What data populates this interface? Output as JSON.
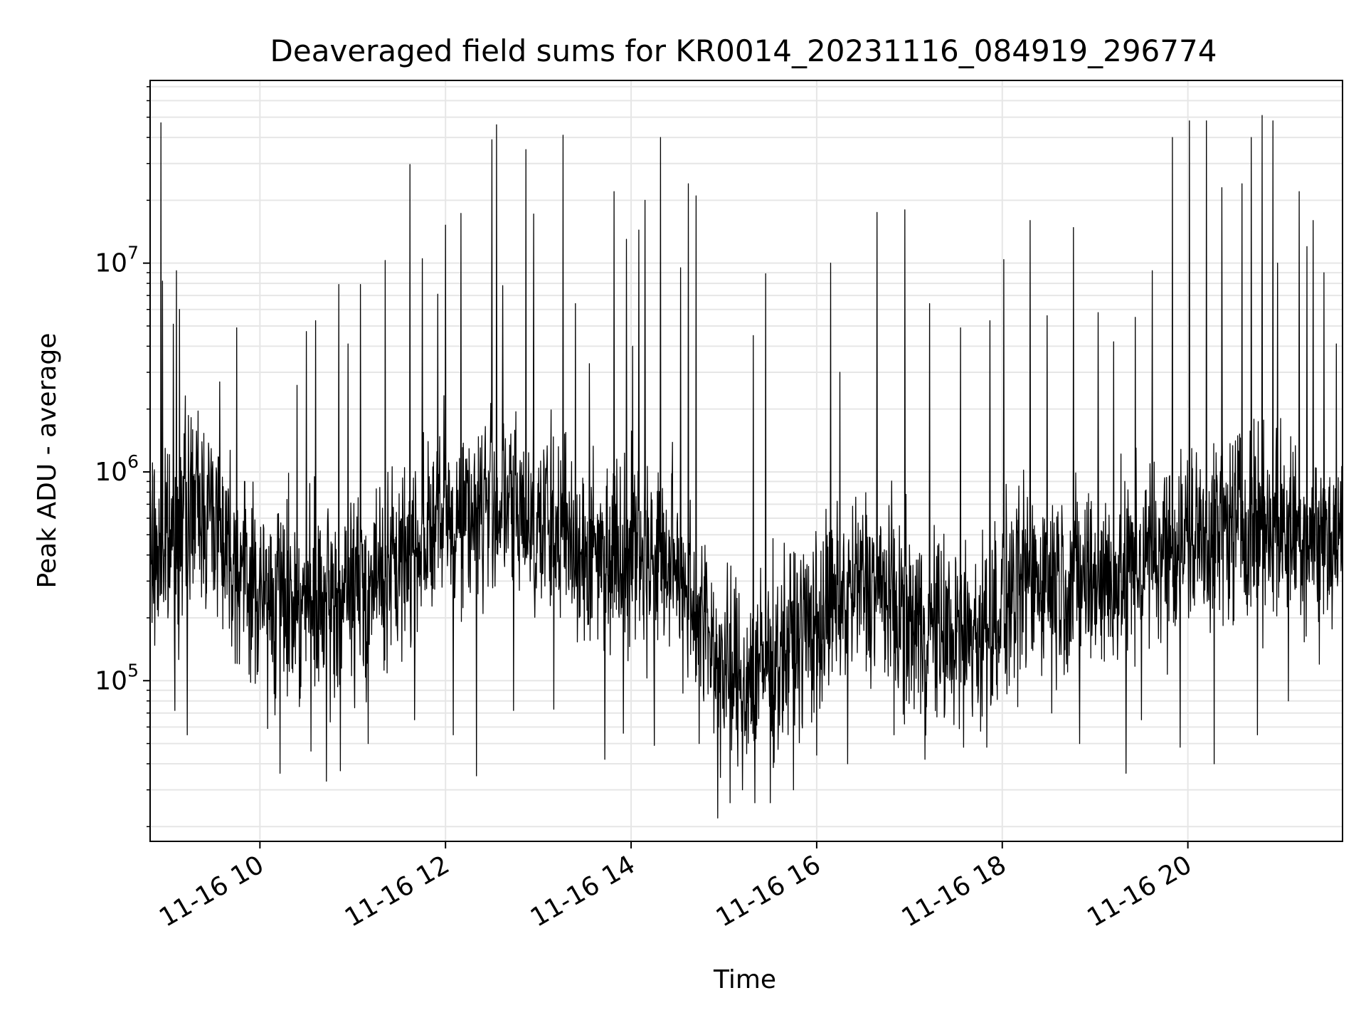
{
  "chart_data": {
    "type": "line",
    "title": "Deaveraged field sums for KR0014_20231116_084919_296774",
    "xlabel": "Time",
    "ylabel": "Peak ADU - average",
    "x_start": "2023-11-16 08:49",
    "x_end": "2023-11-16 21:40",
    "xlim": [
      "2023-11-16 08:49",
      "2023-11-16 21:40"
    ],
    "ylim": [
      17000,
      75000000
    ],
    "yscale": "log",
    "grid": true,
    "x_ticks": [
      {
        "value": "2023-11-16 10:00",
        "label": "11-16 10"
      },
      {
        "value": "2023-11-16 12:00",
        "label": "11-16 12"
      },
      {
        "value": "2023-11-16 14:00",
        "label": "11-16 14"
      },
      {
        "value": "2023-11-16 16:00",
        "label": "11-16 16"
      },
      {
        "value": "2023-11-16 18:00",
        "label": "11-16 18"
      },
      {
        "value": "2023-11-16 20:00",
        "label": "11-16 20"
      }
    ],
    "y_ticks": [
      {
        "value": 100000,
        "base": "10",
        "exp": "5"
      },
      {
        "value": 1000000,
        "base": "10",
        "exp": "6"
      },
      {
        "value": 10000000,
        "base": "10",
        "exp": "7"
      }
    ],
    "series": [
      {
        "color": "#000000",
        "baseline": [
          [
            "08:49",
            400000
          ],
          [
            "09:00",
            420000
          ],
          [
            "09:15",
            700000
          ],
          [
            "09:30",
            650000
          ],
          [
            "09:45",
            380000
          ],
          [
            "10:00",
            250000
          ],
          [
            "10:15",
            260000
          ],
          [
            "10:30",
            230000
          ],
          [
            "10:45",
            220000
          ],
          [
            "11:00",
            270000
          ],
          [
            "11:15",
            300000
          ],
          [
            "11:30",
            350000
          ],
          [
            "11:45",
            520000
          ],
          [
            "12:00",
            580000
          ],
          [
            "12:15",
            650000
          ],
          [
            "12:30",
            720000
          ],
          [
            "12:45",
            650000
          ],
          [
            "13:00",
            580000
          ],
          [
            "13:15",
            520000
          ],
          [
            "13:30",
            400000
          ],
          [
            "13:45",
            420000
          ],
          [
            "14:00",
            450000
          ],
          [
            "14:15",
            380000
          ],
          [
            "14:30",
            350000
          ],
          [
            "14:45",
            200000
          ],
          [
            "15:00",
            110000
          ],
          [
            "15:15",
            100000
          ],
          [
            "15:30",
            120000
          ],
          [
            "15:45",
            160000
          ],
          [
            "16:00",
            190000
          ],
          [
            "16:15",
            230000
          ],
          [
            "16:30",
            300000
          ],
          [
            "16:45",
            260000
          ],
          [
            "17:00",
            190000
          ],
          [
            "17:15",
            180000
          ],
          [
            "17:30",
            160000
          ],
          [
            "17:45",
            170000
          ],
          [
            "18:00",
            230000
          ],
          [
            "18:15",
            300000
          ],
          [
            "18:30",
            330000
          ],
          [
            "18:45",
            300000
          ],
          [
            "19:00",
            310000
          ],
          [
            "19:15",
            300000
          ],
          [
            "19:30",
            380000
          ],
          [
            "19:45",
            430000
          ],
          [
            "20:00",
            480000
          ],
          [
            "20:15",
            500000
          ],
          [
            "20:30",
            560000
          ],
          [
            "20:45",
            580000
          ],
          [
            "21:00",
            540000
          ],
          [
            "21:15",
            520000
          ],
          [
            "21:30",
            480000
          ],
          [
            "21:40",
            460000
          ]
        ],
        "spikes": [
          [
            "08:56",
            47000000
          ],
          [
            "08:57",
            8200000
          ],
          [
            "09:04",
            5100000
          ],
          [
            "09:06",
            9200000
          ],
          [
            "09:08",
            6000000
          ],
          [
            "09:13",
            5300000
          ],
          [
            "09:34",
            2700000
          ],
          [
            "09:45",
            4900000
          ],
          [
            "10:24",
            2600000
          ],
          [
            "10:30",
            4700000
          ],
          [
            "10:36",
            5300000
          ],
          [
            "10:51",
            7900000
          ],
          [
            "10:57",
            4100000
          ],
          [
            "11:05",
            7900000
          ],
          [
            "11:21",
            10300000
          ],
          [
            "11:37",
            29700000
          ],
          [
            "11:45",
            10500000
          ],
          [
            "11:55",
            7100000
          ],
          [
            "12:00",
            15200000
          ],
          [
            "12:10",
            17300000
          ],
          [
            "12:20",
            9200000
          ],
          [
            "12:30",
            39000000
          ],
          [
            "12:33",
            46000000
          ],
          [
            "12:37",
            7800000
          ],
          [
            "12:52",
            35000000
          ],
          [
            "12:57",
            17200000
          ],
          [
            "13:10",
            7000000
          ],
          [
            "13:16",
            41000000
          ],
          [
            "13:24",
            6400000
          ],
          [
            "13:33",
            3300000
          ],
          [
            "13:49",
            22000000
          ],
          [
            "13:57",
            13000000
          ],
          [
            "14:01",
            4000000
          ],
          [
            "14:05",
            14400000
          ],
          [
            "14:09",
            20000000
          ],
          [
            "14:19",
            40000000
          ],
          [
            "14:32",
            9500000
          ],
          [
            "14:37",
            24000000
          ],
          [
            "14:42",
            21000000
          ],
          [
            "15:12",
            5400000
          ],
          [
            "15:19",
            4500000
          ],
          [
            "15:27",
            8900000
          ],
          [
            "16:09",
            10000000
          ],
          [
            "16:15",
            3000000
          ],
          [
            "16:39",
            17500000
          ],
          [
            "16:57",
            18000000
          ],
          [
            "17:13",
            6400000
          ],
          [
            "17:33",
            4900000
          ],
          [
            "17:52",
            5300000
          ],
          [
            "18:01",
            10400000
          ],
          [
            "18:18",
            16000000
          ],
          [
            "18:29",
            5600000
          ],
          [
            "18:46",
            14800000
          ],
          [
            "19:02",
            5800000
          ],
          [
            "19:12",
            4200000
          ],
          [
            "19:26",
            5500000
          ],
          [
            "19:37",
            9200000
          ],
          [
            "19:50",
            40000000
          ],
          [
            "20:01",
            48000000
          ],
          [
            "20:12",
            48000000
          ],
          [
            "20:22",
            23000000
          ],
          [
            "20:35",
            24000000
          ],
          [
            "20:41",
            40000000
          ],
          [
            "20:48",
            51000000
          ],
          [
            "20:55",
            48000000
          ],
          [
            "20:58",
            10000000
          ],
          [
            "21:05",
            27000000
          ],
          [
            "21:12",
            22000000
          ],
          [
            "21:17",
            12000000
          ],
          [
            "21:21",
            16000000
          ],
          [
            "21:28",
            9000000
          ],
          [
            "21:36",
            4100000
          ]
        ],
        "dips": [
          [
            "09:05",
            72000
          ],
          [
            "09:13",
            55000
          ],
          [
            "10:05",
            59000
          ],
          [
            "10:13",
            36000
          ],
          [
            "10:33",
            46000
          ],
          [
            "10:43",
            33000
          ],
          [
            "10:52",
            37000
          ],
          [
            "11:10",
            50000
          ],
          [
            "11:40",
            65000
          ],
          [
            "12:05",
            55000
          ],
          [
            "12:20",
            35000
          ],
          [
            "12:44",
            72000
          ],
          [
            "13:10",
            73000
          ],
          [
            "13:43",
            42000
          ],
          [
            "13:55",
            56000
          ],
          [
            "14:15",
            49000
          ],
          [
            "14:44",
            50000
          ],
          [
            "14:56",
            22000
          ],
          [
            "15:04",
            26000
          ],
          [
            "15:12",
            30000
          ],
          [
            "15:20",
            26000
          ],
          [
            "15:30",
            26000
          ],
          [
            "15:45",
            30000
          ],
          [
            "16:00",
            44000
          ],
          [
            "16:20",
            40000
          ],
          [
            "16:50",
            55000
          ],
          [
            "17:10",
            42000
          ],
          [
            "17:35",
            48000
          ],
          [
            "17:50",
            48000
          ],
          [
            "18:10",
            75000
          ],
          [
            "18:32",
            70000
          ],
          [
            "18:50",
            50000
          ],
          [
            "19:20",
            36000
          ],
          [
            "19:30",
            65000
          ],
          [
            "19:55",
            48000
          ],
          [
            "20:17",
            40000
          ],
          [
            "20:45",
            55000
          ],
          [
            "21:05",
            80000
          ],
          [
            "21:25",
            120000
          ]
        ],
        "noise_seed": 7,
        "noise_decades": 0.45
      }
    ]
  }
}
